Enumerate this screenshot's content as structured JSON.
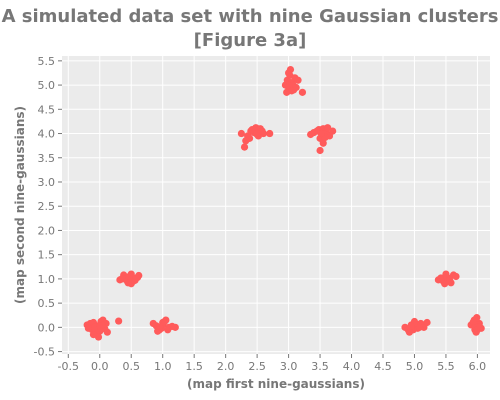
{
  "chart_data": {
    "type": "scatter",
    "title_line1": "A simulated data set with nine Gaussian clusters",
    "title_line2": "[Figure 3a]",
    "xlabel": "(map first nine-gaussians)",
    "ylabel": "(map second nine-gaussians)",
    "xlim": [
      -0.6,
      6.2
    ],
    "ylim": [
      -0.55,
      5.6
    ],
    "x_ticks": [
      "-0.5",
      "0.0",
      "0.5",
      "1.0",
      "1.5",
      "2.0",
      "2.5",
      "3.0",
      "3.5",
      "4.0",
      "4.5",
      "5.0",
      "5.5",
      "6.0"
    ],
    "x_tick_values": [
      -0.5,
      0.0,
      0.5,
      1.0,
      1.5,
      2.0,
      2.5,
      3.0,
      3.5,
      4.0,
      4.5,
      5.0,
      5.5,
      6.0
    ],
    "y_ticks": [
      "-0.5",
      "0.0",
      "0.5",
      "1.0",
      "1.5",
      "2.0",
      "2.5",
      "3.0",
      "3.5",
      "4.0",
      "4.5",
      "5.0",
      "5.5"
    ],
    "y_tick_values": [
      -0.5,
      0.0,
      0.5,
      1.0,
      1.5,
      2.0,
      2.5,
      3.0,
      3.5,
      4.0,
      4.5,
      5.0,
      5.5
    ],
    "grid": true,
    "background_color": "#ebebeb",
    "point_color": "#ff5b5b",
    "x": [
      -0.2,
      -0.15,
      -0.1,
      -0.05,
      0.0,
      0.05,
      0.1,
      -0.12,
      -0.05,
      0.02,
      0.08,
      -0.18,
      0.0,
      0.05,
      -0.08,
      0.12,
      -0.02,
      -0.1,
      0.04,
      0.0,
      0.3,
      0.32,
      0.36,
      0.4,
      0.44,
      0.48,
      0.52,
      0.56,
      0.6,
      0.38,
      0.45,
      0.5,
      0.55,
      0.42,
      0.47,
      0.53,
      0.58,
      0.35,
      0.62,
      0.5,
      0.85,
      0.9,
      0.95,
      1.0,
      1.05,
      1.1,
      1.15,
      0.92,
      1.0,
      1.08,
      1.2,
      0.98,
      1.03,
      0.95,
      2.25,
      2.3,
      2.35,
      2.4,
      2.45,
      2.5,
      2.55,
      2.6,
      2.7,
      2.38,
      2.48,
      2.52,
      2.58,
      2.42,
      2.5,
      2.32,
      2.95,
      2.98,
      3.0,
      3.02,
      3.05,
      3.08,
      3.1,
      3.15,
      2.97,
      3.03,
      3.07,
      3.12,
      3.0,
      3.05,
      3.22,
      3.35,
      3.4,
      3.45,
      3.5,
      3.55,
      3.6,
      3.65,
      3.7,
      3.5,
      3.55,
      3.62,
      3.48,
      3.58,
      3.52,
      4.85,
      4.9,
      4.95,
      5.0,
      5.05,
      5.1,
      5.15,
      4.92,
      5.02,
      5.08,
      4.98,
      5.0,
      4.95,
      5.2,
      5.38,
      5.42,
      5.46,
      5.5,
      5.54,
      5.58,
      5.62,
      5.45,
      5.52,
      5.48,
      5.56,
      5.5,
      5.66,
      5.9,
      5.93,
      5.96,
      6.0,
      6.03,
      6.06,
      5.95,
      5.98,
      6.01,
      5.97,
      6.0,
      5.94,
      6.04,
      5.99
    ],
    "y": [
      0.05,
      0.08,
      0.1,
      0.02,
      0.05,
      0.0,
      0.08,
      -0.05,
      -0.1,
      0.12,
      -0.03,
      -0.02,
      -0.08,
      0.15,
      0.0,
      -0.1,
      -0.2,
      -0.15,
      0.05,
      0.03,
      0.13,
      0.98,
      1.0,
      1.02,
      0.95,
      1.05,
      1.0,
      0.97,
      1.03,
      1.08,
      0.92,
      1.1,
      0.98,
      1.0,
      1.05,
      0.95,
      1.02,
      1.0,
      1.07,
      0.9,
      0.08,
      0.03,
      -0.05,
      0.05,
      0.15,
      0.0,
      0.02,
      -0.08,
      0.1,
      -0.05,
      0.0,
      -0.02,
      0.12,
      0.0,
      4.0,
      3.72,
      3.95,
      4.05,
      4.02,
      3.98,
      4.1,
      4.0,
      4.0,
      3.9,
      4.12,
      3.95,
      4.05,
      4.08,
      4.0,
      3.85,
      5.0,
      5.1,
      4.95,
      5.2,
      5.05,
      4.9,
      5.15,
      5.1,
      4.85,
      5.32,
      5.0,
      4.95,
      5.25,
      4.88,
      4.85,
      3.98,
      4.02,
      4.05,
      3.9,
      4.1,
      4.0,
      3.95,
      4.05,
      3.65,
      3.8,
      4.12,
      4.08,
      3.92,
      4.0,
      0.0,
      -0.05,
      0.05,
      0.1,
      -0.02,
      0.08,
      0.0,
      -0.1,
      0.05,
      0.0,
      -0.05,
      0.12,
      0.02,
      0.1,
      0.98,
      1.02,
      0.95,
      1.05,
      1.0,
      0.92,
      1.08,
      1.0,
      1.03,
      0.9,
      0.97,
      1.1,
      1.05,
      0.05,
      0.1,
      -0.05,
      0.0,
      0.08,
      -0.02,
      0.15,
      -0.1,
      0.05,
      0.02,
      -0.05,
      0.12,
      0.0,
      0.2
    ]
  }
}
